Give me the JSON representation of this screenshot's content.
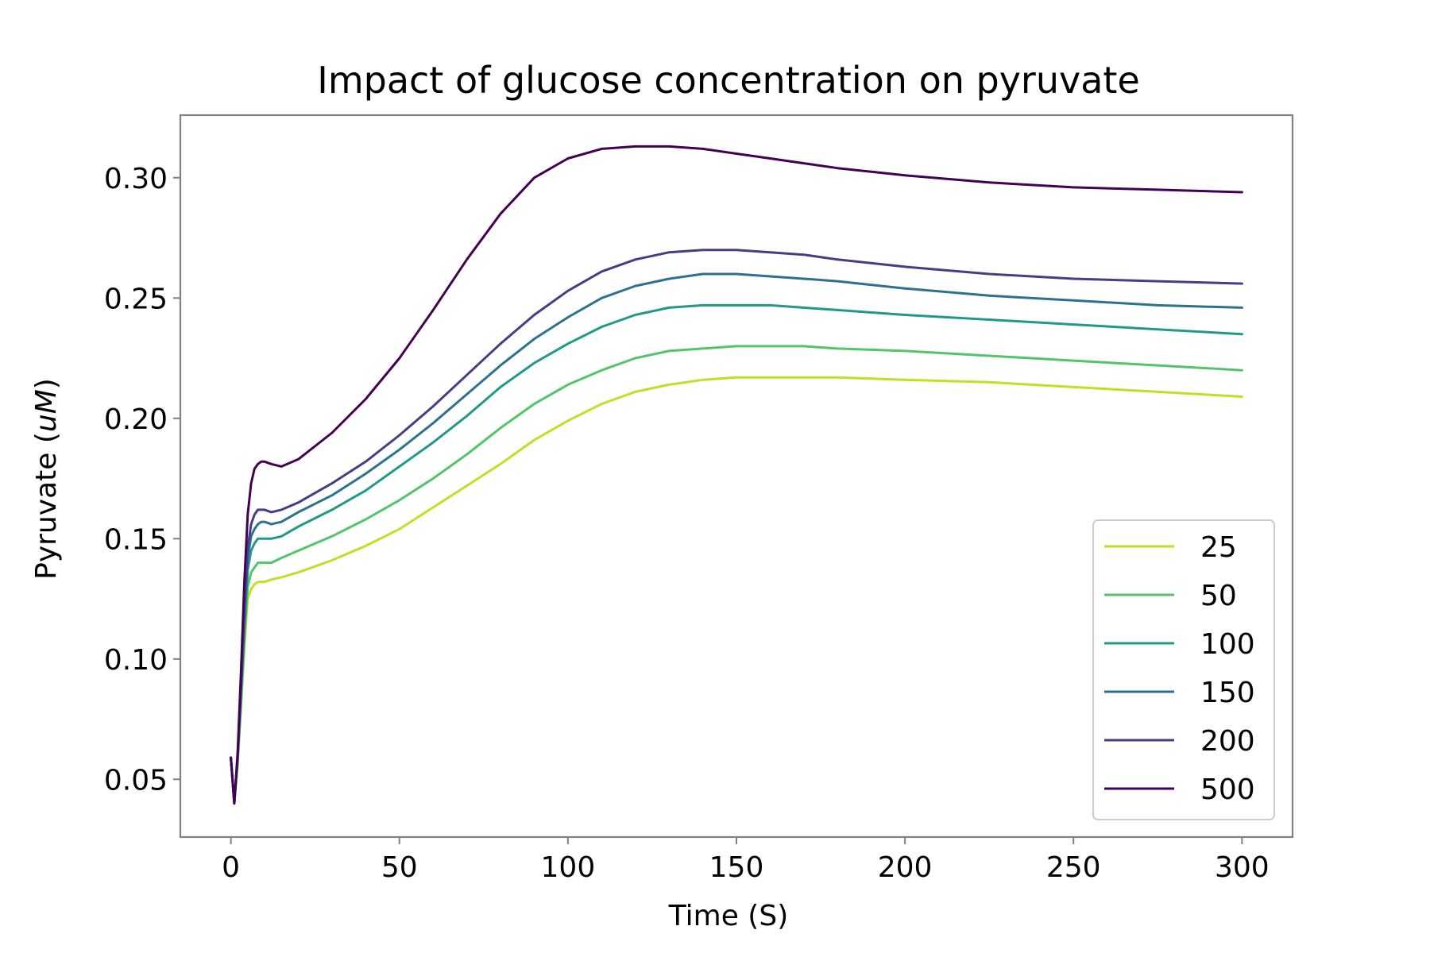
{
  "chart_data": {
    "type": "line",
    "title": "Impact of glucose concentration on pyruvate",
    "xlabel": "Time (S)",
    "ylabel_prefix": "Pyruvate (",
    "ylabel_italic": "uM",
    "ylabel_suffix": ")",
    "xlim": [
      -15,
      315
    ],
    "ylim": [
      0.026,
      0.326
    ],
    "x_ticks": [
      0,
      50,
      100,
      150,
      200,
      250,
      300
    ],
    "x_tick_labels": [
      "0",
      "50",
      "100",
      "150",
      "200",
      "250",
      "300"
    ],
    "y_ticks": [
      0.05,
      0.1,
      0.15,
      0.2,
      0.25,
      0.3
    ],
    "y_tick_labels": [
      "0.05",
      "0.10",
      "0.15",
      "0.20",
      "0.25",
      "0.30"
    ],
    "grid": false,
    "legend_position": "lower-right",
    "x": [
      0,
      1,
      2,
      3,
      4,
      5,
      6,
      7,
      8,
      9,
      10,
      12,
      15,
      20,
      30,
      40,
      50,
      60,
      70,
      80,
      90,
      100,
      110,
      120,
      130,
      140,
      150,
      160,
      170,
      180,
      200,
      225,
      250,
      275,
      300
    ],
    "series": [
      {
        "name": "25",
        "color": "#c2df23",
        "values": [
          0.059,
          0.04,
          0.056,
          0.08,
          0.105,
          0.125,
          0.129,
          0.131,
          0.132,
          0.132,
          0.132,
          0.133,
          0.134,
          0.136,
          0.141,
          0.147,
          0.154,
          0.163,
          0.172,
          0.181,
          0.191,
          0.199,
          0.206,
          0.211,
          0.214,
          0.216,
          0.217,
          0.217,
          0.217,
          0.217,
          0.216,
          0.215,
          0.213,
          0.211,
          0.209
        ]
      },
      {
        "name": "50",
        "color": "#52c569",
        "values": [
          0.059,
          0.04,
          0.057,
          0.082,
          0.108,
          0.13,
          0.136,
          0.138,
          0.14,
          0.14,
          0.14,
          0.14,
          0.142,
          0.145,
          0.151,
          0.158,
          0.166,
          0.175,
          0.185,
          0.196,
          0.206,
          0.214,
          0.22,
          0.225,
          0.228,
          0.229,
          0.23,
          0.23,
          0.23,
          0.229,
          0.228,
          0.226,
          0.224,
          0.222,
          0.22
        ]
      },
      {
        "name": "100",
        "color": "#1f9a8a",
        "values": [
          0.059,
          0.04,
          0.058,
          0.085,
          0.113,
          0.137,
          0.145,
          0.148,
          0.15,
          0.15,
          0.15,
          0.15,
          0.151,
          0.155,
          0.162,
          0.17,
          0.18,
          0.19,
          0.201,
          0.213,
          0.223,
          0.231,
          0.238,
          0.243,
          0.246,
          0.247,
          0.247,
          0.247,
          0.246,
          0.245,
          0.243,
          0.241,
          0.239,
          0.237,
          0.235
        ]
      },
      {
        "name": "150",
        "color": "#2c728e",
        "values": [
          0.059,
          0.04,
          0.059,
          0.087,
          0.117,
          0.142,
          0.151,
          0.154,
          0.156,
          0.157,
          0.157,
          0.156,
          0.157,
          0.161,
          0.168,
          0.177,
          0.187,
          0.198,
          0.21,
          0.222,
          0.233,
          0.242,
          0.25,
          0.255,
          0.258,
          0.26,
          0.26,
          0.259,
          0.258,
          0.257,
          0.254,
          0.251,
          0.249,
          0.247,
          0.246
        ]
      },
      {
        "name": "200",
        "color": "#433e85",
        "values": [
          0.059,
          0.04,
          0.059,
          0.089,
          0.12,
          0.146,
          0.156,
          0.16,
          0.162,
          0.162,
          0.162,
          0.161,
          0.162,
          0.165,
          0.173,
          0.182,
          0.193,
          0.205,
          0.218,
          0.231,
          0.243,
          0.253,
          0.261,
          0.266,
          0.269,
          0.27,
          0.27,
          0.269,
          0.268,
          0.266,
          0.263,
          0.26,
          0.258,
          0.257,
          0.256
        ]
      },
      {
        "name": "500",
        "color": "#440154",
        "values": [
          0.059,
          0.04,
          0.061,
          0.095,
          0.132,
          0.16,
          0.173,
          0.179,
          0.181,
          0.182,
          0.182,
          0.181,
          0.18,
          0.183,
          0.194,
          0.208,
          0.225,
          0.245,
          0.266,
          0.285,
          0.3,
          0.308,
          0.312,
          0.313,
          0.313,
          0.312,
          0.31,
          0.308,
          0.306,
          0.304,
          0.301,
          0.298,
          0.296,
          0.295,
          0.294
        ]
      }
    ],
    "axis_color": "#808080"
  }
}
